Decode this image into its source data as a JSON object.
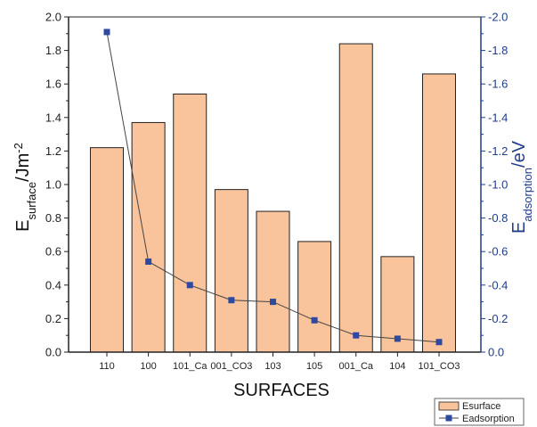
{
  "chart_data": {
    "type": "bar",
    "categories": [
      "110",
      "100",
      "101_Ca",
      "001_CO3",
      "103",
      "105",
      "001_Ca",
      "104",
      "101_CO3"
    ],
    "xlabel": "SURFACES",
    "ylabel_left": {
      "main": "E",
      "sub": "surface",
      "unit": "/Jm",
      "sup": "-2"
    },
    "ylabel_right": {
      "main": "E",
      "sub": "adsorption",
      "unit": "/eV"
    },
    "ylim_left": [
      0,
      2.0
    ],
    "ylim_right": [
      0,
      -2.0
    ],
    "yticks_left": [
      "0.0",
      "0.2",
      "0.4",
      "0.6",
      "0.8",
      "1.0",
      "1.2",
      "1.4",
      "1.6",
      "1.8",
      "2.0"
    ],
    "yticks_right": [
      "0.0",
      "-0.2",
      "-0.4",
      "-0.6",
      "-0.8",
      "-1.0",
      "-1.2",
      "-1.4",
      "-1.6",
      "-1.8",
      "-2.0"
    ],
    "series": [
      {
        "name": "Esurface",
        "type": "bar",
        "axis": "left",
        "values": [
          1.22,
          1.37,
          1.54,
          0.97,
          0.84,
          0.66,
          1.84,
          0.57,
          1.66
        ],
        "color": "#f9c39c",
        "stroke": "#222222"
      },
      {
        "name": "Eadsorption",
        "type": "line",
        "axis": "right",
        "values": [
          -1.91,
          -0.54,
          -0.4,
          -0.31,
          -0.3,
          -0.19,
          -0.1,
          -0.08,
          -0.06
        ],
        "color": "#2e4aa0",
        "line_color": "#444444"
      }
    ],
    "grid": false,
    "legend_position": "bottom-right"
  }
}
